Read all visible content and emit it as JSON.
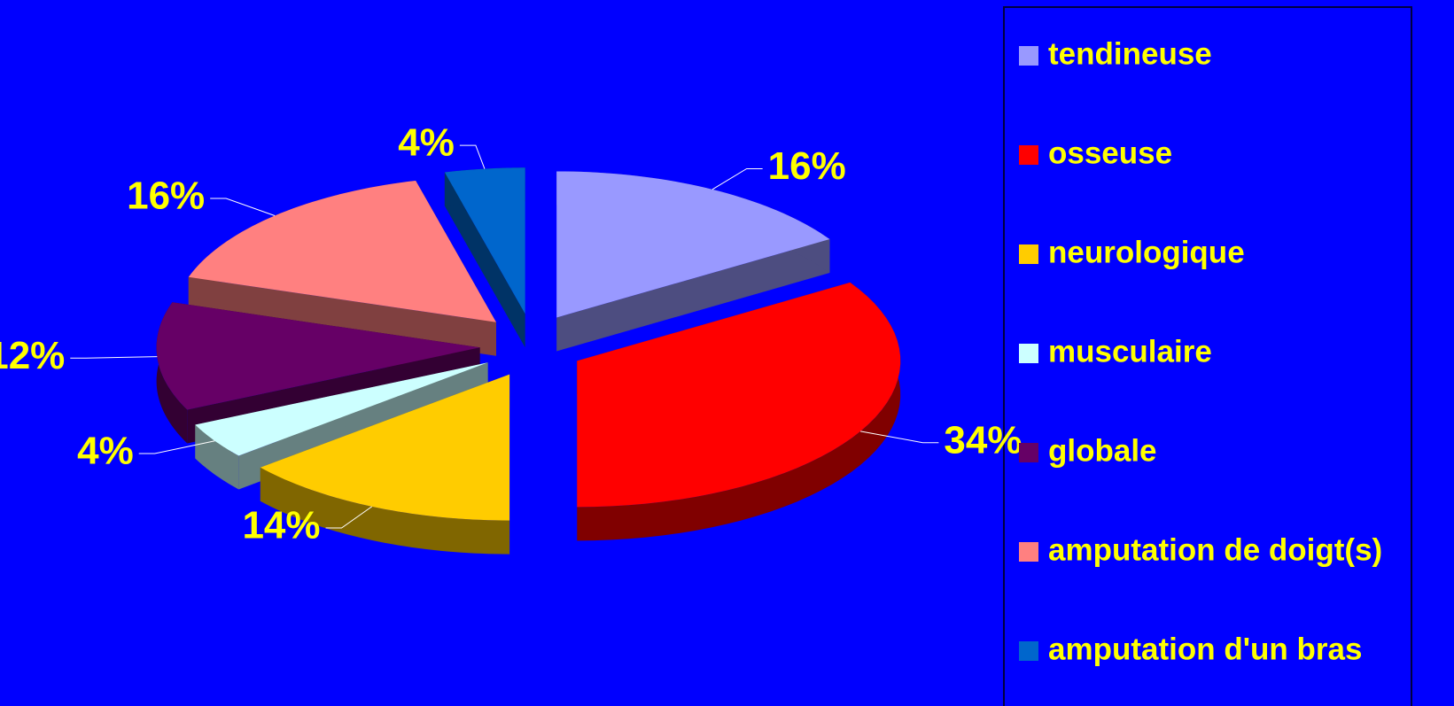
{
  "chart_data": {
    "type": "pie",
    "categories": [
      "tendineuse",
      "osseuse",
      "neurologique",
      "musculaire",
      "globale",
      "amputation de doigt(s)",
      "amputation d'un bras"
    ],
    "values": [
      16,
      34,
      14,
      4,
      12,
      16,
      4
    ],
    "value_labels": [
      "16%",
      "34%",
      "14%",
      "4%",
      "12%",
      "16%",
      "4%"
    ],
    "colors": [
      "#9999ff",
      "#ff0000",
      "#ffcc00",
      "#ccffff",
      "#660066",
      "#ff8080",
      "#0066cc"
    ],
    "legend": "right"
  }
}
